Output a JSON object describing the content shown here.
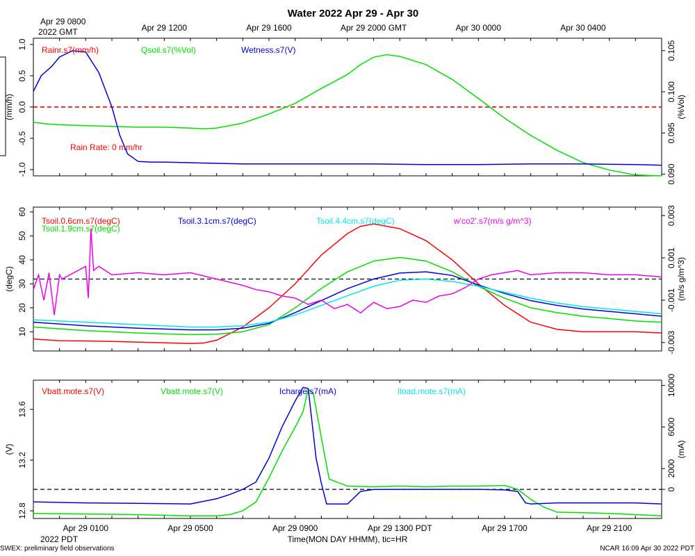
{
  "page": {
    "title": "Water 2022 Apr 29 - Apr 30",
    "footer_left": "SWEX: preliminary field observations",
    "footer_right": "NCAR 16:09 Apr 30 2022 PDT",
    "x_axis_label": "Time(MON DAY HHMM), tic=HR",
    "gmt_start_line1": "Apr 29 0800",
    "gmt_start_line2": "2022 GMT",
    "pdt_start_line2": "2022 PDT"
  },
  "colors": {
    "red": "#ff0000",
    "green": "#00e000",
    "blue": "#0000dd",
    "cyan": "#00e5ee",
    "magenta": "#ee00ee",
    "black": "#000000"
  },
  "chart_data": [
    {
      "type": "line",
      "panel": "water",
      "x_range_hours_pdt": [
        23,
        47
      ],
      "top_ticks": [
        "Apr 29 1200",
        "Apr 29 1600",
        "Apr 29 2000 GMT",
        "Apr 30 0000",
        "Apr 30 0400"
      ],
      "top_tick_hours_pdt": [
        28,
        32,
        36,
        40,
        44
      ],
      "left_axis": {
        "label": "(mm/h)",
        "range": [
          -1.1,
          1.1
        ],
        "ticks": [
          1.0,
          0.5,
          0.0,
          -0.5,
          -1.0
        ],
        "tick_labels": [
          "1.0",
          "0.5",
          "0.0",
          "-0.5",
          "-1.0"
        ]
      },
      "right_axis": {
        "label": "(%Vol)",
        "range": [
          0.0898,
          0.1065
        ],
        "ticks": [
          0.105,
          0.1,
          0.095,
          0.09
        ],
        "tick_labels": [
          "0.105",
          "0.100",
          "0.095",
          "0.090"
        ]
      },
      "legend": [
        {
          "name": "Rainr.s7(mm/h)",
          "color": "#ff0000"
        },
        {
          "name": "Qsoil.s7(%Vol)",
          "color": "#00e000"
        },
        {
          "name": "Wetness.s7(V)",
          "color": "#0000dd"
        }
      ],
      "annotation": "Rain Rate: 0 mm/hr",
      "series": [
        {
          "name": "Rainr.s7",
          "axis": "left",
          "color": "#ff0000",
          "x": [
            23,
            47
          ],
          "y": [
            0,
            0
          ]
        },
        {
          "name": "Qsoil.s7",
          "axis": "right",
          "color": "#00e000",
          "x": [
            23,
            23.5,
            24,
            25,
            26,
            27,
            28,
            29,
            29.5,
            30,
            31,
            32,
            33,
            34,
            35,
            35.5,
            36,
            36.5,
            37,
            38,
            39,
            40,
            41,
            42,
            43,
            44,
            45,
            46,
            47
          ],
          "y": [
            0.0963,
            0.0961,
            0.096,
            0.0959,
            0.0958,
            0.0957,
            0.0957,
            0.0956,
            0.0955,
            0.0956,
            0.0962,
            0.0973,
            0.0986,
            0.1004,
            0.1021,
            0.1033,
            0.1042,
            0.1045,
            0.1043,
            0.1033,
            0.1015,
            0.0992,
            0.0968,
            0.0947,
            0.0929,
            0.0914,
            0.0905,
            0.0899,
            0.0898
          ]
        },
        {
          "name": "Wetness.s7",
          "axis": "left",
          "color": "#0000dd",
          "x": [
            23,
            23.3,
            23.7,
            24,
            24.5,
            25,
            25.5,
            26,
            26.3,
            26.6,
            27,
            27.5,
            28,
            29,
            30,
            31,
            32,
            33,
            34,
            35,
            36,
            38,
            40,
            42,
            44,
            46,
            47
          ],
          "y": [
            0.25,
            0.5,
            0.65,
            0.8,
            0.9,
            0.88,
            0.55,
            0.0,
            -0.45,
            -0.75,
            -0.87,
            -0.88,
            -0.88,
            -0.89,
            -0.9,
            -0.91,
            -0.91,
            -0.91,
            -0.91,
            -0.91,
            -0.91,
            -0.92,
            -0.92,
            -0.91,
            -0.91,
            -0.92,
            -0.93
          ]
        }
      ]
    },
    {
      "type": "line",
      "panel": "soil",
      "x_range_hours_pdt": [
        23,
        47
      ],
      "left_axis": {
        "label": "(degC)",
        "range": [
          2,
          62
        ],
        "ticks": [
          60,
          50,
          40,
          30,
          20,
          10
        ],
        "tick_labels": [
          "60",
          "50",
          "40",
          "30",
          "20",
          "10"
        ]
      },
      "right_axis": {
        "label": "(m/s g/m^3)",
        "range": [
          -0.0034,
          0.0034
        ],
        "ticks": [
          0.003,
          0.001,
          -0.001,
          -0.003
        ],
        "tick_labels": [
          "0.003",
          "0.001",
          "-0.001",
          "-0.003"
        ]
      },
      "legend": [
        {
          "name": "Tsoil.0.6cm.s7(degC)",
          "color": "#ff0000"
        },
        {
          "name": "Tsoil.1.9cm.s7(degC)",
          "color": "#00e000"
        },
        {
          "name": "Tsoil.3.1cm.s7(degC)",
          "color": "#0000dd"
        },
        {
          "name": "Tsoil.4.4cm.s7(degC)",
          "color": "#00e5ee"
        },
        {
          "name": "w'co2'.s7(m/s g/m^3)",
          "color": "#ee00ee"
        }
      ],
      "series": [
        {
          "name": "Tsoil.0.6cm.s7",
          "axis": "left",
          "color": "#ff0000",
          "x": [
            23,
            24,
            25,
            26,
            27,
            28,
            29,
            29.5,
            30,
            31,
            32,
            33,
            34,
            35,
            35.5,
            36,
            37,
            38,
            39,
            40,
            41,
            42,
            43,
            44,
            45,
            46,
            47
          ],
          "y": [
            7,
            6.3,
            6.2,
            6,
            5.7,
            5.4,
            5.1,
            5.3,
            6.5,
            12,
            20,
            30,
            42,
            51,
            54,
            55,
            53,
            48,
            40,
            30,
            21,
            14,
            11,
            10,
            10,
            10,
            9.5
          ]
        },
        {
          "name": "Tsoil.1.9cm.s7",
          "axis": "left",
          "color": "#00e000",
          "x": [
            23,
            25,
            27,
            29,
            30,
            31,
            32,
            33,
            34,
            35,
            36,
            37,
            38,
            39,
            40,
            41,
            42,
            43,
            44,
            45,
            46,
            47
          ],
          "y": [
            12,
            10.5,
            9.5,
            8.8,
            9,
            10,
            13,
            20,
            28,
            35,
            39.5,
            41,
            39.5,
            35,
            29,
            24,
            20,
            18,
            16.5,
            15.5,
            14.5,
            14
          ]
        },
        {
          "name": "Tsoil.3.1cm.s7",
          "axis": "left",
          "color": "#0000dd",
          "x": [
            23,
            25,
            27,
            29,
            30,
            31,
            32,
            33,
            34,
            35,
            36,
            37,
            38,
            39,
            40,
            41,
            42,
            43,
            44,
            45,
            46,
            47
          ],
          "y": [
            14,
            12.5,
            11.5,
            10.8,
            10.8,
            11.5,
            13.5,
            18,
            23,
            28,
            32,
            34.5,
            35,
            33.5,
            29.5,
            26,
            23,
            21,
            19.5,
            18.5,
            17.5,
            16.5
          ]
        },
        {
          "name": "Tsoil.4.4cm.s7",
          "axis": "left",
          "color": "#00e5ee",
          "x": [
            23,
            25,
            27,
            29,
            30,
            31,
            32,
            33,
            34,
            35,
            36,
            37,
            38,
            39,
            40,
            41,
            42,
            43,
            44,
            45,
            46,
            47
          ],
          "y": [
            15,
            14,
            13,
            12,
            12,
            12.5,
            14,
            17,
            21,
            25,
            29,
            31.5,
            32,
            31,
            29,
            26.5,
            24,
            22,
            20.5,
            19.5,
            18.5,
            17.5
          ]
        },
        {
          "name": "w'co2'.s7",
          "axis": "right",
          "color": "#ee00ee",
          "x": [
            23,
            23.2,
            23.4,
            23.6,
            23.8,
            24.0,
            24.1,
            25,
            25.1,
            25.2,
            25.3,
            25.5,
            26,
            27,
            28,
            29,
            30,
            31,
            31.5,
            32,
            32.5,
            33,
            33.5,
            34,
            34.5,
            35,
            35.5,
            36,
            36.5,
            37,
            37.5,
            38,
            38.5,
            39,
            39.5,
            40,
            40.5,
            41,
            41.5,
            42,
            43,
            44,
            45,
            46,
            47
          ],
          "y": [
            -0.0005,
            0.0002,
            -0.001,
            0.0003,
            -0.0017,
            0.0002,
            0.0,
            0.0006,
            -0.0009,
            0.0024,
            0.0004,
            0.0006,
            0.0002,
            0.0003,
            0.0002,
            0.0003,
            0.0,
            -0.0003,
            -0.0005,
            -0.0006,
            -0.0008,
            -0.0009,
            -0.0012,
            -0.001,
            -0.0014,
            -0.0012,
            -0.0016,
            -0.0011,
            -0.0014,
            -0.0013,
            -0.001,
            -0.0011,
            -0.0008,
            -0.0007,
            -0.0004,
            0.0,
            0.0002,
            0.0003,
            0.0004,
            0.0002,
            0.0003,
            0.0003,
            0.0002,
            0.0002,
            0.0001
          ]
        }
      ]
    },
    {
      "type": "line",
      "panel": "power",
      "x_range_hours_pdt": [
        23,
        47
      ],
      "bottom_ticks": [
        "Apr 29 0100",
        "Apr 29 0500",
        "Apr 29 0900",
        "Apr 29 1300 PDT",
        "Apr 29 1700",
        "Apr 29 2100"
      ],
      "bottom_tick_hours_pdt": [
        25,
        29,
        33,
        37,
        41,
        45
      ],
      "left_axis": {
        "label": "(V)",
        "range": [
          12.74,
          13.83
        ],
        "ticks": [
          13.6,
          13.2,
          12.8
        ],
        "tick_labels": [
          "13.6",
          "13.2",
          "12.8"
        ]
      },
      "right_axis": {
        "label": "(mA)",
        "range": [
          -2800,
          10500
        ],
        "ticks": [
          10000,
          6000,
          2000,
          0
        ],
        "tick_labels": [
          "10000",
          "6000",
          "2000",
          "0"
        ]
      },
      "legend": [
        {
          "name": "Vbatt.mote.s7(V)",
          "color": "#ff0000"
        },
        {
          "name": "Vbatt.mote.s7(V)",
          "color": "#00e000"
        },
        {
          "name": "Icharge.s7(mA)",
          "color": "#0000dd"
        },
        {
          "name": "Iload.mote.s7(mA)",
          "color": "#00e5ee"
        }
      ],
      "series": [
        {
          "name": "Vbatt.mote.s7",
          "axis": "left",
          "color": "#00e000",
          "x": [
            23,
            25,
            27,
            29,
            30,
            30.5,
            31,
            31.5,
            32,
            32.5,
            33,
            33.3,
            33.5,
            33.7,
            34,
            34.3,
            35,
            36,
            37,
            38,
            39,
            40,
            41,
            41.5,
            42,
            42.5,
            43,
            44,
            45,
            46,
            47
          ],
          "y": [
            12.78,
            12.775,
            12.77,
            12.76,
            12.76,
            12.77,
            12.8,
            12.87,
            13.06,
            13.27,
            13.46,
            13.58,
            13.76,
            13.72,
            13.38,
            13.05,
            12.995,
            12.99,
            12.995,
            12.99,
            12.995,
            12.995,
            13.0,
            12.97,
            12.89,
            12.83,
            12.79,
            12.785,
            12.78,
            12.77,
            12.76
          ]
        },
        {
          "name": "Icharge.s7",
          "axis": "right",
          "color": "#0000dd",
          "x": [
            23,
            25,
            27,
            29,
            30,
            30.5,
            31,
            31.5,
            32,
            32.5,
            33,
            33.3,
            33.5,
            33.8,
            34,
            34.2,
            35,
            35.5,
            36,
            37,
            38,
            39,
            40,
            41,
            41.5,
            41.8,
            42,
            43,
            44,
            45,
            46,
            47
          ],
          "y": [
            -1200,
            -1300,
            -1350,
            -1400,
            -900,
            -500,
            0,
            700,
            3000,
            6000,
            8500,
            9800,
            9700,
            3000,
            600,
            -1400,
            -1400,
            -200,
            -10,
            0,
            0,
            0,
            0,
            -50,
            -200,
            -1300,
            -1400,
            -1300,
            -1300,
            -1300,
            -1300,
            -1400
          ]
        }
      ]
    }
  ]
}
